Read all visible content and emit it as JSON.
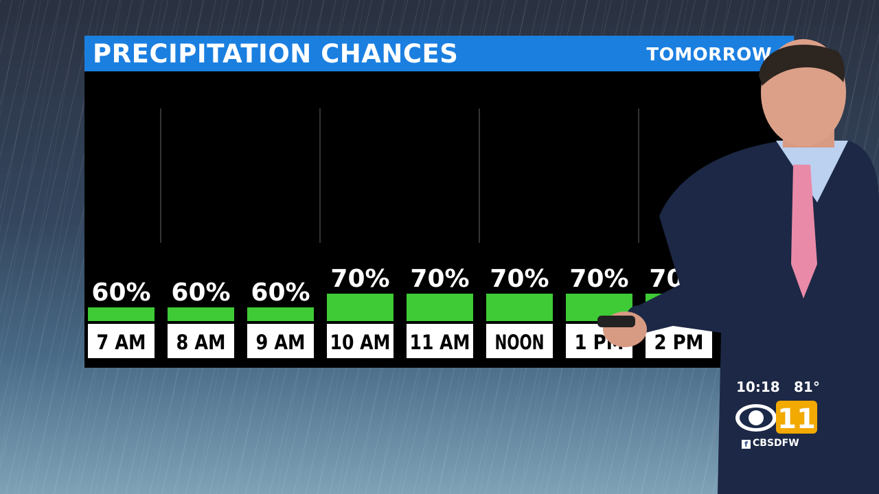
{
  "header": {
    "title": "PRECIPITATION CHANCES",
    "subtitle": "TOMORROW"
  },
  "colors": {
    "bar": "#3ecb36",
    "title_bar": "#1b7fe0",
    "panel": "#000000",
    "label_box": "#ffffff"
  },
  "chart_data": {
    "type": "bar",
    "title": "PRECIPITATION CHANCES",
    "subtitle": "TOMORROW",
    "categories": [
      "7 AM",
      "8 AM",
      "9 AM",
      "10 AM",
      "11 AM",
      "NOON",
      "1 PM",
      "2 PM",
      ""
    ],
    "values": [
      60,
      60,
      60,
      70,
      70,
      70,
      70,
      70,
      null
    ],
    "value_labels": [
      "60%",
      "60%",
      "60%",
      "70%",
      "70%",
      "70%",
      "70%",
      "70%",
      ""
    ],
    "unit": "%",
    "ylim": [
      0,
      100
    ],
    "grid": false,
    "legend": "none"
  },
  "station": {
    "time": "10:18",
    "temp": "81°",
    "logo_text": "11",
    "handle": "CBSDFW",
    "social_icon": "facebook-icon"
  }
}
